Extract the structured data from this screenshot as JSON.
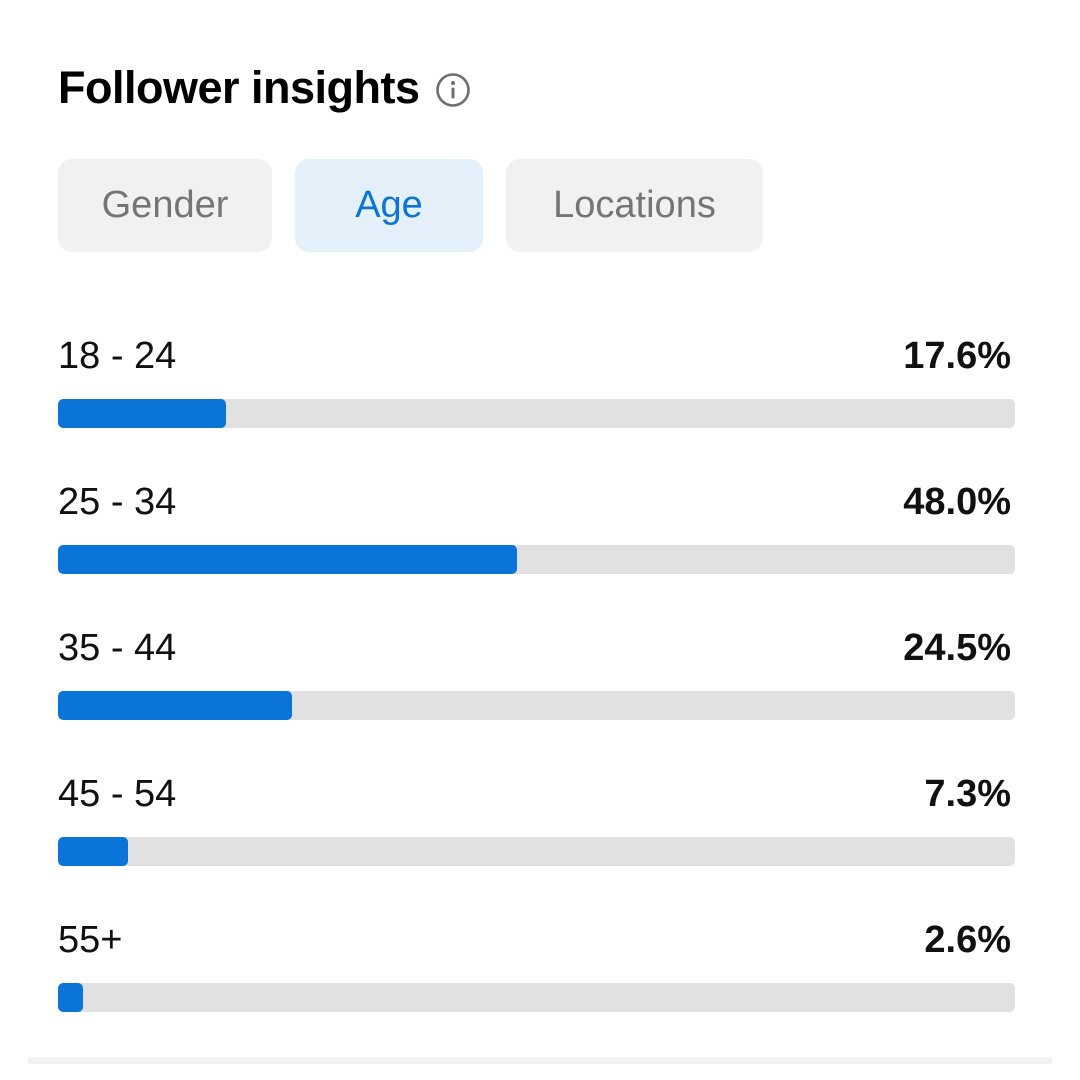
{
  "header": {
    "title": "Follower insights",
    "info_icon": "info-circle-icon"
  },
  "tabs": [
    {
      "label": "Gender",
      "active": false
    },
    {
      "label": "Age",
      "active": true
    },
    {
      "label": "Locations",
      "active": false
    }
  ],
  "age_breakdown": [
    {
      "label": "18 - 24",
      "value": "17.6%",
      "percent": 17.6
    },
    {
      "label": "25 - 34",
      "value": "48.0%",
      "percent": 48.0
    },
    {
      "label": "35 - 44",
      "value": "24.5%",
      "percent": 24.5
    },
    {
      "label": "45 - 54",
      "value": "7.3%",
      "percent": 7.3
    },
    {
      "label": "55+",
      "value": "2.6%",
      "percent": 2.6
    }
  ],
  "colors": {
    "accent": "#0a74d9",
    "active_tab_bg": "#e4f0fa",
    "inactive_tab_bg": "#f1f1f1",
    "track": "#e1e1e1"
  }
}
